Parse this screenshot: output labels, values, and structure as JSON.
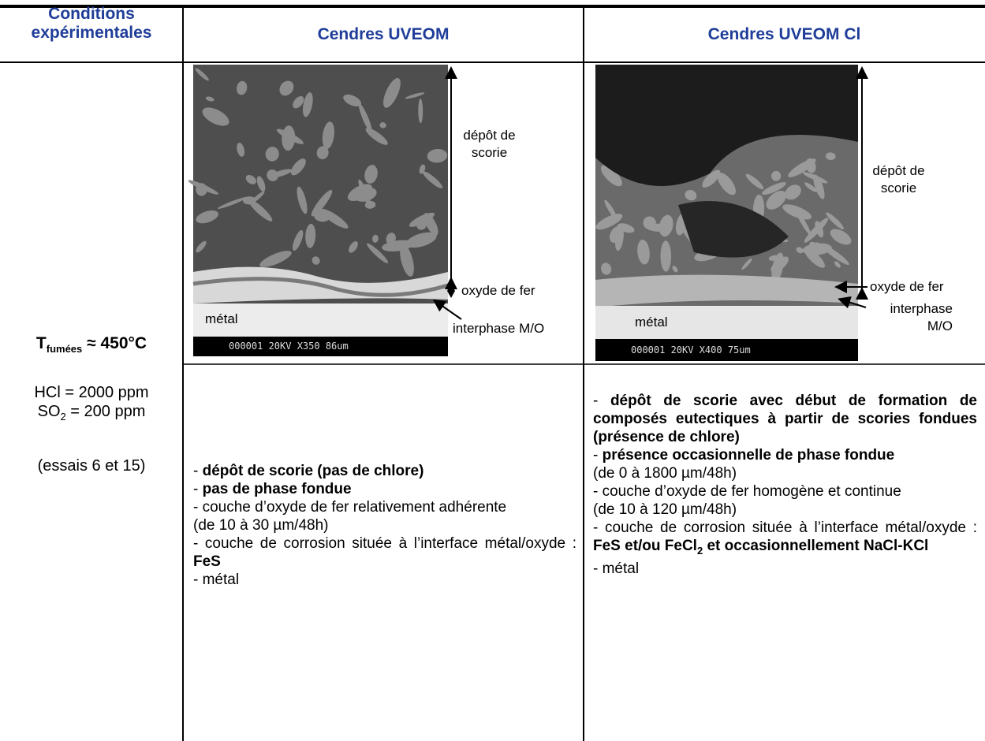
{
  "header": {
    "conditions": "Conditions expérimentales",
    "col1": "Cendres UVEOM",
    "col2": "Cendres UVEOM Cl"
  },
  "conditions": {
    "temperature": [
      "T",
      "fumées",
      " ≈ 450°C"
    ],
    "hcl": "HCl = 2000 ppm",
    "so2": [
      "SO",
      "2",
      " = 200 ppm"
    ],
    "tests": "(essais 6 et 15)"
  },
  "images": [
    {
      "deposit": "dépôt de scorie",
      "oxide": "oxyde de fer",
      "interphase": "interphase M/O",
      "metal": "métal",
      "scale": "000001 20KV X350 86um"
    },
    {
      "deposit": "dépôt de scorie",
      "oxide": "oxyde de fer",
      "interphase": "interphase M/O",
      "metal": "métal",
      "scale": "000001 20KV X400 75um"
    }
  ],
  "descriptions": [
    {
      "paragraphs": [
        [
          {
            "text": "- "
          },
          {
            "text": "dépôt de scorie (pas de chlore)",
            "style": "bold"
          }
        ],
        [
          {
            "text": "- "
          },
          {
            "text": "pas de phase fondue",
            "style": "bold"
          }
        ],
        [
          {
            "text": "- couche d’oxyde de fer relativement adhérente"
          }
        ],
        [
          {
            "text": "(de 10 à 30 µm/48h)"
          }
        ],
        [
          {
            "text": "- couche de corrosion située à l’interface métal/oxyde : "
          },
          {
            "text": "FeS",
            "style": "bold"
          }
        ],
        [
          {
            "text": "- métal"
          }
        ]
      ]
    },
    {
      "paragraphs": [
        [
          {
            "text": "- "
          },
          {
            "text": "dépôt de scorie avec début de formation de composés eutectiques à partir de scories fondues (présence de chlore)",
            "style": "bold"
          }
        ],
        [
          {
            "text": "- "
          },
          {
            "text": "présence occasionnelle de phase fondue",
            "style": "bold"
          }
        ],
        [
          {
            "text": "(de 0 à 1800 µm/48h)"
          }
        ],
        [
          {
            "text": "- couche d’oxyde de fer homogène et continue"
          }
        ],
        [
          {
            "text": "(de 10 à 120 µm/48h)"
          }
        ],
        [
          {
            "text": "- couche de corrosion située à l’interface métal/oxyde : "
          },
          {
            "text": "FeS et/ou FeCl",
            "style": "bold"
          },
          {
            "text": "2",
            "style": "sub"
          },
          {
            "text": " et occasionnellement NaCl-KCl",
            "style": "bold"
          }
        ],
        [
          {
            "text": "- métal"
          }
        ]
      ]
    }
  ]
}
